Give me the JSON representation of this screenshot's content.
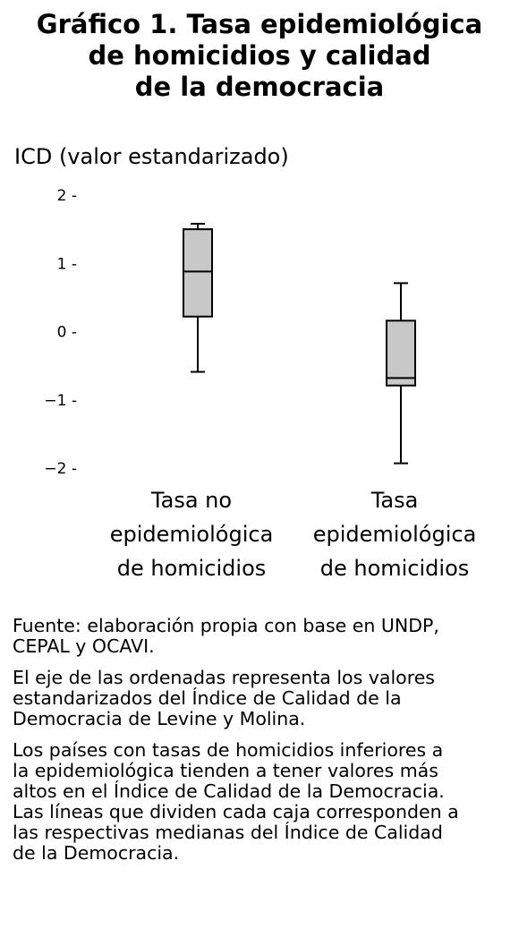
{
  "title_lines": [
    "Gráfico 1. Tasa epidemiológica",
    "de homicidios y calidad",
    "de la democracia"
  ],
  "chart_data": {
    "type": "boxplot",
    "ylabel": "ICD (valor estandarizado)",
    "ylim": [
      -2,
      2
    ],
    "yticks": [
      {
        "value": 2,
        "label": "2 -"
      },
      {
        "value": 1,
        "label": "1 -"
      },
      {
        "value": 0,
        "label": "0 -"
      },
      {
        "value": -1,
        "label": "−1 -"
      },
      {
        "value": -2,
        "label": "−2 -"
      }
    ],
    "grid": false,
    "box_color": "#c8c8c8",
    "categories": [
      {
        "label_lines": [
          "Tasa no",
          "epidemiológica",
          "de homicidios"
        ],
        "whisker_low": -0.59,
        "q1": 0.22,
        "median": 0.88,
        "q3": 1.5,
        "whisker_high": 1.58
      },
      {
        "label_lines": [
          "Tasa",
          "epidemiológica",
          "de homicidios"
        ],
        "whisker_low": -1.93,
        "q1": -0.79,
        "median": -0.68,
        "q3": 0.16,
        "whisker_high": 0.71
      }
    ]
  },
  "notes": [
    [
      "Fuente: elaboración propia con base en UNDP,",
      "CEPAL y OCAVI."
    ],
    [
      "El eje de las ordenadas representa los valores",
      "estandarizados del Índice de Calidad de la",
      "Democracia de Levine y Molina."
    ],
    [
      "Los países con tasas de homicidios inferiores a",
      "la epidemiológica tienden a tener valores más",
      "altos en el Índice de Calidad de la Democracia.",
      "Las líneas que dividen cada caja corresponden a",
      "las respectivas medianas del Índice de Calidad",
      "de la Democracia."
    ]
  ]
}
